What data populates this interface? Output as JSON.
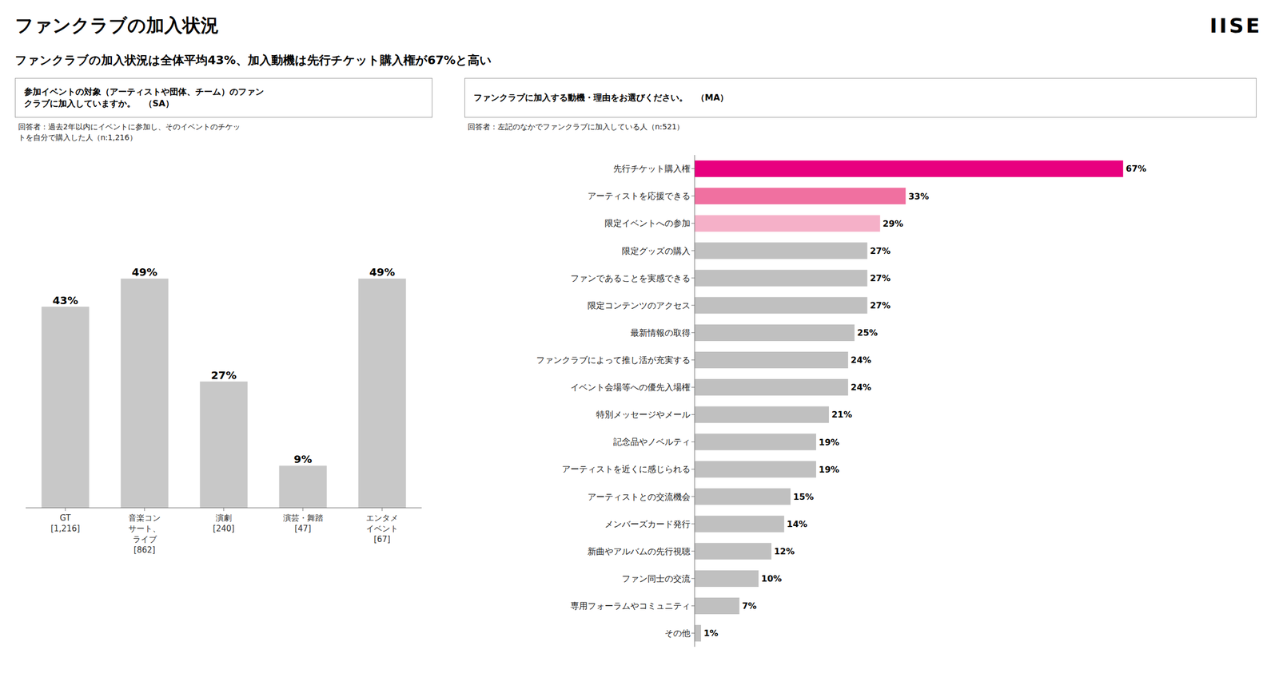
{
  "title": "ファンクラブの加入状況",
  "subtitle": "ファンクラブの加入状況は全体平均43%、加入動機は先行チケット購入権が67%と高い",
  "annotations": [
    "IISE"
  ],
  "chart_data": [
    {
      "type": "bar",
      "title": "参加イベントの対象（アーティストや団体、チーム）のファン\nクラブに加入していますか。　（SA）",
      "subtitle": "回答者：過去2年以内にイベントに参加し、そのイベントのチケッ\nトを自分で購入した人（n:1,216）",
      "categories": [
        "GT\n[1,216]",
        "音楽コン\nサート、\nライブ\n[862]",
        "演劇\n[240]",
        "演芸・舞踏\n[47]",
        "エンタメ\nイベント\n[67]"
      ],
      "values": [
        43,
        49,
        27,
        9,
        49
      ],
      "value_labels": [
        "43%",
        "49%",
        "27%",
        "9%",
        "49%"
      ],
      "color": "#c8c8c8",
      "ylim": [
        0,
        72
      ],
      "grid": false,
      "data_labels": true,
      "tick_labels": "x"
    },
    {
      "type": "bar",
      "orientation": "horizontal",
      "title": "ファンクラブに加入する動機・理由をお選びください。　（MA）",
      "subtitle": "回答者：左記のなかでファンクラブに加入している人（n:521）",
      "categories": [
        "先行チケット購入権",
        "アーティストを応援できる",
        "限定イベントへの参加",
        "限定グッズの購入",
        "ファンであることを実感できる",
        "限定コンテンツのアクセス",
        "最新情報の取得",
        "ファンクラブによって推し活が充実する",
        "イベント会場等への優先入場権",
        "特別メッセージやメール",
        "記念品やノベルティ",
        "アーティストを近くに感じられる",
        "アーティストとの交流機会",
        "メンバーズカード発行",
        "新曲やアルバムの先行視聴",
        "ファン同士の交流",
        "専用フォーラムやコミュニティ",
        "その他"
      ],
      "values": [
        67,
        33,
        29,
        27,
        27,
        27,
        25,
        24,
        24,
        21,
        19,
        19,
        15,
        14,
        12,
        10,
        7,
        1
      ],
      "value_labels": [
        "67%",
        "33%",
        "29%",
        "27%",
        "27%",
        "27%",
        "25%",
        "24%",
        "24%",
        "21%",
        "19%",
        "19%",
        "15%",
        "14%",
        "12%",
        "10%",
        "7%",
        "1%"
      ],
      "colors": [
        "#e8007f",
        "#f070a0",
        "#f5b0c8",
        "#c0c0c0",
        "#c0c0c0",
        "#c0c0c0",
        "#c0c0c0",
        "#c0c0c0",
        "#c0c0c0",
        "#c0c0c0",
        "#c0c0c0",
        "#c0c0c0",
        "#c0c0c0",
        "#c0c0c0",
        "#c0c0c0",
        "#c0c0c0",
        "#c0c0c0",
        "#c0c0c0"
      ],
      "xlim": [
        0,
        82
      ],
      "grid": false,
      "data_labels": true,
      "tick_labels": "y"
    }
  ]
}
